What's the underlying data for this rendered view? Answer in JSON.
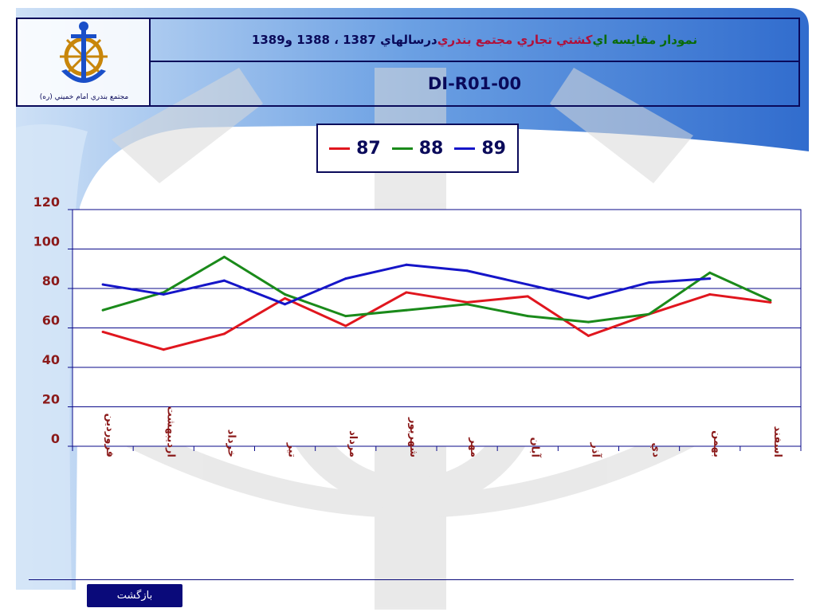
{
  "header": {
    "logo_caption": "مجتمع بندري امام خميني (ره)",
    "title_parts": [
      {
        "text": "نمودار مقايسه اي ",
        "color": "green"
      },
      {
        "text": "كشتي تجاري مجتمع بندري ",
        "color": "red"
      },
      {
        "text": "درسالهاي 1387 ، 1388 و1389",
        "color": "dark"
      }
    ],
    "code": "DI-R01-00"
  },
  "back_button_label": "بازگشت",
  "colors": {
    "series_87": "#e0161e",
    "series_88": "#1a8a1a",
    "series_89": "#1515c8",
    "axis": "#0a0a8a",
    "category_label": "#8b1a1a",
    "tick_label": "#8b1a1a"
  },
  "chart_data": {
    "type": "line",
    "categories": [
      "فروردين",
      "ارديبهشت",
      "خرداد",
      "تير",
      "مرداد",
      "شهريور",
      "مهر",
      "آبان",
      "آذر",
      "دي",
      "بهمن",
      "اسفند"
    ],
    "y_ticks": [
      "0",
      "20",
      "40",
      "60",
      "80",
      "100",
      "120"
    ],
    "ylim": [
      0,
      120
    ],
    "grid": true,
    "legend_position": "top-center",
    "series": [
      {
        "name": "87",
        "values": [
          58,
          49,
          57,
          75,
          61,
          78,
          73,
          76,
          56,
          67,
          77,
          73
        ]
      },
      {
        "name": "88",
        "values": [
          69,
          78,
          96,
          77,
          66,
          69,
          72,
          66,
          63,
          67,
          88,
          74
        ]
      },
      {
        "name": "89",
        "values": [
          82,
          77,
          84,
          72,
          85,
          92,
          89,
          82,
          75,
          83,
          85,
          null
        ]
      }
    ]
  }
}
